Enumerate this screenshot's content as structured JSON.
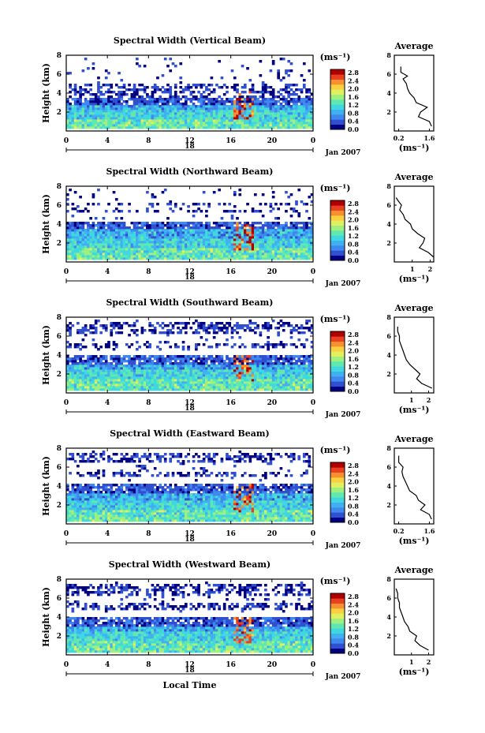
{
  "chart_data": [
    {
      "type": "heatmap",
      "title": "Spectral Width (Vertical Beam)",
      "ylabel": "Height (km)",
      "xticks": [
        "0",
        "4",
        "8",
        "12",
        "16",
        "20",
        "0"
      ],
      "day_label": "18",
      "date_label": "Jan 2007",
      "colorbar": {
        "unit": "(ms⁻¹)",
        "ticks": [
          "2.8",
          "2.4",
          "2.0",
          "1.6",
          "1.2",
          "0.8",
          "0.4",
          "0.0"
        ],
        "min": 0,
        "max": 3.0
      },
      "xlim": [
        0,
        24
      ],
      "ylim": [
        0,
        8
      ],
      "bands": [
        [
          0.3,
          1.3
        ],
        [
          1.3,
          2.2
        ],
        [
          2.2,
          2.7
        ],
        [
          2.7,
          3.4
        ],
        [
          3.4,
          4.4
        ],
        [
          4.4,
          5.0
        ]
      ],
      "avg": {
        "title": "Average",
        "xlabel": "(ms⁻¹)",
        "xticks": [
          "0.2",
          "1.6"
        ],
        "xlim": [
          0,
          1.8
        ],
        "yticks": [
          "2",
          "4",
          "6",
          "8"
        ],
        "profile": [
          [
            1.7,
            0.5
          ],
          [
            1.6,
            1.0
          ],
          [
            1.1,
            1.5
          ],
          [
            1.2,
            2.0
          ],
          [
            1.5,
            2.5
          ],
          [
            1.0,
            3.0
          ],
          [
            0.9,
            3.5
          ],
          [
            0.7,
            4.0
          ],
          [
            0.6,
            4.5
          ],
          [
            0.55,
            5.0
          ],
          [
            0.4,
            5.5
          ],
          [
            0.6,
            5.8
          ],
          [
            0.3,
            6.2
          ],
          [
            0.3,
            6.8
          ]
        ]
      }
    },
    {
      "type": "heatmap",
      "title": "Spectral Width (Northward Beam)",
      "ylabel": "Height (km)",
      "xticks": [
        "0",
        "4",
        "8",
        "12",
        "16",
        "20",
        "0"
      ],
      "day_label": "18",
      "date_label": "Jan 2007",
      "colorbar": {
        "unit": "(ms⁻¹)",
        "ticks": [
          "2.8",
          "2.4",
          "2.0",
          "1.6",
          "1.2",
          "0.8",
          "0.4",
          "0.0"
        ],
        "min": 0,
        "max": 3.0
      },
      "xlim": [
        0,
        24
      ],
      "ylim": [
        0,
        8
      ],
      "bands": [
        [
          0.3,
          1.5
        ],
        [
          1.5,
          2.5
        ],
        [
          2.5,
          3.5
        ],
        [
          3.5,
          4.2
        ],
        [
          5.2,
          5.6
        ],
        [
          6.0,
          6.3
        ]
      ],
      "avg": {
        "title": "Average",
        "xlabel": "(ms⁻¹)",
        "xticks": [
          "1",
          "2"
        ],
        "xlim": [
          0,
          2.2
        ],
        "yticks": [
          "2",
          "4",
          "6",
          "8"
        ],
        "profile": [
          [
            2.2,
            0.5
          ],
          [
            1.9,
            1.0
          ],
          [
            1.4,
            1.5
          ],
          [
            1.6,
            2.0
          ],
          [
            1.7,
            2.5
          ],
          [
            1.3,
            3.0
          ],
          [
            1.0,
            3.5
          ],
          [
            0.9,
            4.0
          ],
          [
            0.6,
            4.5
          ],
          [
            0.5,
            5.0
          ],
          [
            0.3,
            5.5
          ],
          [
            0.4,
            6.0
          ],
          [
            0.2,
            6.5
          ],
          [
            0.1,
            6.8
          ]
        ]
      }
    },
    {
      "type": "heatmap",
      "title": "Spectral Width (Southward Beam)",
      "ylabel": "Height (km)",
      "xticks": [
        "0",
        "4",
        "8",
        "12",
        "16",
        "20",
        "0"
      ],
      "day_label": "18",
      "date_label": "Jan 2007",
      "colorbar": {
        "unit": "(ms⁻¹)",
        "ticks": [
          "2.8",
          "2.4",
          "2.0",
          "1.6",
          "1.2",
          "0.8",
          "0.4",
          "0.0"
        ],
        "min": 0,
        "max": 3.0
      },
      "xlim": [
        0,
        24
      ],
      "ylim": [
        0,
        8
      ],
      "bands": [
        [
          0.3,
          1.4
        ],
        [
          1.4,
          2.4
        ],
        [
          2.4,
          3.0
        ],
        [
          3.0,
          4.0
        ],
        [
          4.8,
          5.2
        ],
        [
          6.2,
          7.5
        ]
      ],
      "avg": {
        "title": "Average",
        "xlabel": "(ms⁻¹)",
        "xticks": [
          "1",
          "2"
        ],
        "xlim": [
          0,
          2.3
        ],
        "yticks": [
          "2",
          "4",
          "6",
          "8"
        ],
        "profile": [
          [
            2.2,
            0.5
          ],
          [
            1.6,
            1.0
          ],
          [
            1.3,
            1.5
          ],
          [
            1.5,
            2.0
          ],
          [
            1.2,
            2.5
          ],
          [
            0.9,
            3.0
          ],
          [
            0.7,
            3.5
          ],
          [
            0.6,
            4.0
          ],
          [
            0.5,
            4.5
          ],
          [
            0.4,
            5.0
          ],
          [
            0.3,
            5.5
          ],
          [
            0.3,
            6.0
          ],
          [
            0.2,
            6.5
          ],
          [
            0.2,
            7.0
          ]
        ]
      }
    },
    {
      "type": "heatmap",
      "title": "Spectral Width (Eastward Beam)",
      "ylabel": "Height (km)",
      "xticks": [
        "0",
        "4",
        "8",
        "12",
        "16",
        "20",
        "0"
      ],
      "day_label": "18",
      "date_label": "Jan 2007",
      "colorbar": {
        "unit": "(ms⁻¹)",
        "ticks": [
          "2.8",
          "2.4",
          "2.0",
          "1.6",
          "1.2",
          "0.8",
          "0.4",
          "0.0"
        ],
        "min": 0,
        "max": 3.0
      },
      "xlim": [
        0,
        24
      ],
      "ylim": [
        0,
        8
      ],
      "bands": [
        [
          0.3,
          1.4
        ],
        [
          1.4,
          2.5
        ],
        [
          2.5,
          3.3
        ],
        [
          3.3,
          4.2
        ],
        [
          5.0,
          5.5
        ],
        [
          6.5,
          7.5
        ]
      ],
      "avg": {
        "title": "Average",
        "xlabel": "(ms⁻¹)",
        "xticks": [
          "0.2",
          "1.6"
        ],
        "xlim": [
          0,
          1.8
        ],
        "yticks": [
          "2",
          "4",
          "6",
          "8"
        ],
        "profile": [
          [
            1.7,
            0.5
          ],
          [
            1.6,
            1.0
          ],
          [
            1.2,
            1.5
          ],
          [
            1.4,
            2.0
          ],
          [
            1.1,
            2.5
          ],
          [
            1.0,
            3.0
          ],
          [
            0.7,
            3.5
          ],
          [
            0.6,
            4.0
          ],
          [
            0.5,
            4.5
          ],
          [
            0.4,
            5.0
          ],
          [
            0.35,
            5.5
          ],
          [
            0.4,
            6.0
          ],
          [
            0.2,
            6.5
          ],
          [
            0.2,
            7.2
          ]
        ]
      }
    },
    {
      "type": "heatmap",
      "title": "Spectral Width (Westward Beam)",
      "ylabel": "Height (km)",
      "xticks": [
        "0",
        "4",
        "8",
        "12",
        "16",
        "20",
        "0"
      ],
      "day_label": "18",
      "date_label": "Jan 2007",
      "xlabel": "Local Time",
      "colorbar": {
        "unit": "(ms⁻¹)",
        "ticks": [
          "2.8",
          "2.4",
          "2.0",
          "1.6",
          "1.2",
          "0.8",
          "0.4",
          "0.0"
        ],
        "min": 0,
        "max": 3.0
      },
      "xlim": [
        0,
        24
      ],
      "ylim": [
        0,
        8
      ],
      "bands": [
        [
          0.3,
          1.4
        ],
        [
          1.4,
          2.4
        ],
        [
          2.4,
          3.0
        ],
        [
          3.0,
          4.0
        ],
        [
          4.8,
          5.5
        ],
        [
          6.2,
          7.5
        ]
      ],
      "avg": {
        "title": "Average",
        "xlabel": "(ms⁻¹)",
        "xticks": [
          "1",
          "2"
        ],
        "xlim": [
          0,
          2.3
        ],
        "yticks": [
          "2",
          "4",
          "6",
          "8"
        ],
        "profile": [
          [
            2.0,
            0.5
          ],
          [
            1.5,
            1.0
          ],
          [
            1.2,
            1.5
          ],
          [
            1.3,
            2.0
          ],
          [
            0.9,
            2.5
          ],
          [
            0.8,
            3.0
          ],
          [
            0.6,
            3.5
          ],
          [
            0.5,
            4.0
          ],
          [
            0.4,
            4.5
          ],
          [
            0.3,
            5.0
          ],
          [
            0.3,
            5.5
          ],
          [
            0.2,
            6.0
          ],
          [
            0.2,
            6.5
          ],
          [
            0.1,
            7.0
          ]
        ]
      }
    }
  ],
  "colors": {
    "scale": [
      "#000080",
      "#3050d0",
      "#3f88f0",
      "#40b0f0",
      "#40d8e0",
      "#60e8b0",
      "#a0f080",
      "#e0f060",
      "#f8d040",
      "#f89030",
      "#e84020",
      "#b00000"
    ],
    "frame": "#000000"
  }
}
